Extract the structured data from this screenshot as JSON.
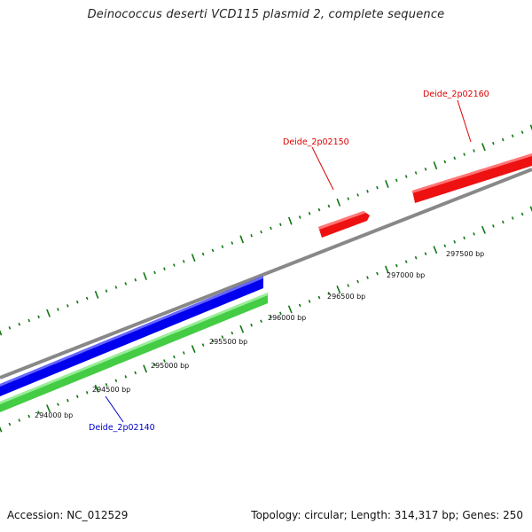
{
  "title": "Deinococcus deserti VCD115 plasmid 2, complete sequence",
  "footer": {
    "accession": "Accession: NC_012529",
    "topology": "Topology: circular; Length: 314,317 bp; Genes: 250"
  },
  "scale_labels": [
    "294000 bp",
    "294500 bp",
    "295000 bp",
    "295500 bp",
    "296000 bp",
    "296500 bp",
    "297000 bp",
    "297500 bp"
  ],
  "genes": [
    {
      "name": "Deide_2p02140",
      "strand": "reverse",
      "color": "#0000ee",
      "label_color": "#0000cc"
    },
    {
      "name": "Deide_2p02150",
      "strand": "forward",
      "color": "#ee1111",
      "label_color": "#dd0000"
    },
    {
      "name": "Deide_2p02160",
      "strand": "forward",
      "color": "#ee1111",
      "label_color": "#dd0000"
    }
  ],
  "tracks": {
    "backbone_color": "#888888",
    "reverse_feature_color": "#44cc44",
    "tick_color": "#117711"
  }
}
